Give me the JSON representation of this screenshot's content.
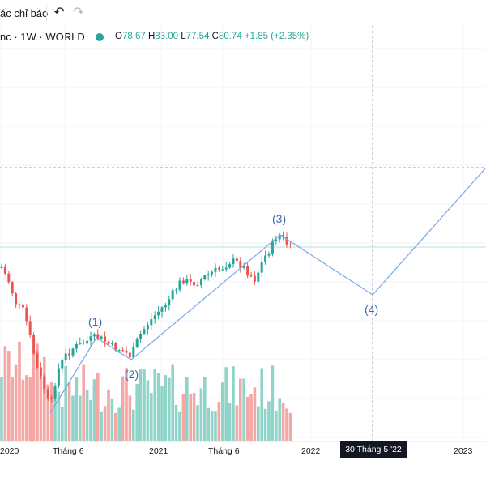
{
  "toolbar": {
    "indicators_label": "ác chỉ báo",
    "undo_icon": "undo-icon",
    "redo_icon": "redo-icon"
  },
  "legend": {
    "symbol_text": "nc · 1W · WORLD",
    "open_key": "O",
    "open": "78.67",
    "high_key": "H",
    "high": "83.00",
    "low_key": "L",
    "low": "77.54",
    "close_key": "C",
    "close": "80.74",
    "change": "+1.85 (+2.35%)",
    "status_color": "#26a69a"
  },
  "time_axis": {
    "labels": [
      "2020",
      "Tháng 6",
      "2021",
      "Tháng 6",
      "2022",
      "2023"
    ],
    "highlighted": "30 Tháng 5 '22"
  },
  "waves": [
    "(1)",
    "(2)",
    "(3)",
    "(4)"
  ],
  "colors": {
    "up": "#26a69a",
    "down": "#ef5350",
    "vol_up": "#8fd3c9",
    "vol_down": "#f4a7a4",
    "projection_line": "#7aa7e6"
  },
  "chart_data": {
    "type": "candlestick",
    "interval": "1W",
    "exchange": "WORLD",
    "last": {
      "open": 78.67,
      "high": 83.0,
      "low": 77.54,
      "close": 80.74,
      "change": 1.85,
      "change_pct": 2.35
    },
    "elliott_wave_labels": [
      "(1)",
      "(2)",
      "(3)",
      "(4)"
    ]
  }
}
